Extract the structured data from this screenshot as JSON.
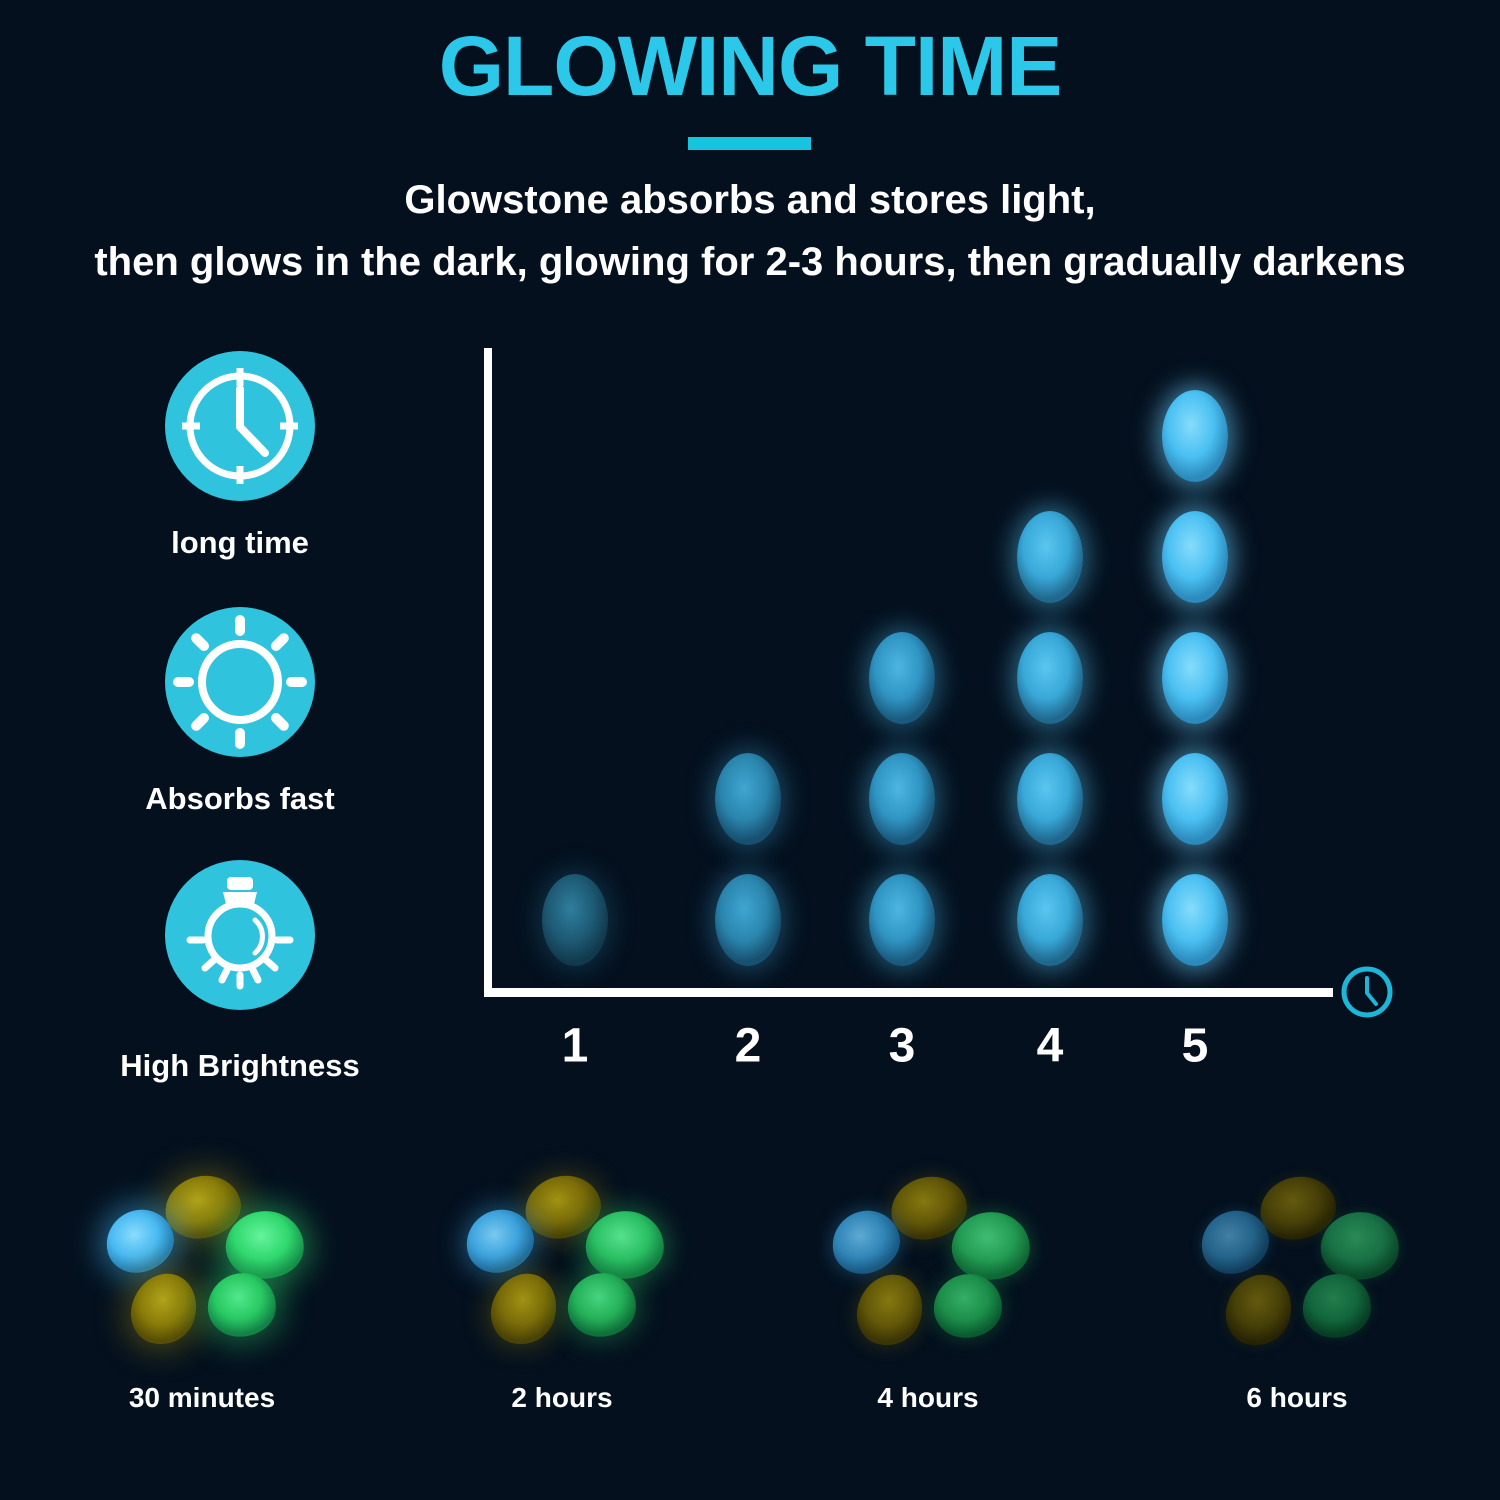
{
  "page": {
    "background": "#04101e",
    "accent_cyan": "#2bc8e9",
    "text_color": "#ffffff"
  },
  "header": {
    "title": "GLOWING TIME",
    "subtitle_line1": "Glowstone absorbs and stores light,",
    "subtitle_line2": "then glows in the dark, glowing for 2-3 hours, then gradually darkens"
  },
  "features": [
    {
      "icon": "clock-icon",
      "label": "long time",
      "circle_color": "#2fc3de"
    },
    {
      "icon": "sun-icon",
      "label": "Absorbs fast",
      "circle_color": "#2fc3de"
    },
    {
      "icon": "lightbulb-icon",
      "label": "High Brightness",
      "circle_color": "#2fc3de"
    }
  ],
  "chart_data": {
    "type": "bar",
    "variant": "pictograph of stacked glowing pebbles (count = glow level per time step)",
    "categories": [
      "1",
      "2",
      "3",
      "4",
      "5"
    ],
    "values": [
      1,
      2,
      3,
      4,
      5
    ],
    "series": [
      {
        "name": "glow brightness (pebbles stacked)",
        "values": [
          1,
          2,
          3,
          4,
          5
        ]
      }
    ],
    "title": "",
    "xlabel": "time (clock icon at axis end)",
    "ylabel": "",
    "ylim": [
      0,
      5
    ],
    "grid": false,
    "legend": "none",
    "axis_color": "#ffffff",
    "x_axis_end_icon": "clock-icon",
    "x_axis_icon_color": "#1db5d8",
    "column_pebble_styles": [
      {
        "light": "#2e7e9e",
        "base": "#1e5a74",
        "edge": "#123a4e",
        "glow": "rgba(40,125,160,0.28)"
      },
      {
        "light": "#3fa6d2",
        "base": "#2a85ad",
        "edge": "#175070",
        "glow": "rgba(60,160,210,0.35)"
      },
      {
        "light": "#4cb6e2",
        "base": "#2f94c2",
        "edge": "#1a5a7e",
        "glow": "rgba(70,180,225,0.40)"
      },
      {
        "light": "#5ac6f0",
        "base": "#38a8d8",
        "edge": "#20688e",
        "glow": "rgba(85,195,240,0.45)"
      },
      {
        "light": "#86dcfc",
        "base": "#4ac0f2",
        "edge": "#2c8abc",
        "glow": "rgba(110,210,255,0.55)"
      }
    ]
  },
  "timeline": {
    "description": "four pebble clusters fading over time",
    "clusters": [
      {
        "label": "30 minutes",
        "stage": 0
      },
      {
        "label": "2 hours",
        "stage": 1
      },
      {
        "label": "4 hours",
        "stage": 2
      },
      {
        "label": "6 hours",
        "stage": 3
      }
    ],
    "palette": {
      "blue": [
        {
          "light": "#8adcfd",
          "base": "#49baf2",
          "edge": "#2680b4",
          "glow": "rgba(70,190,250,0.45)"
        },
        {
          "light": "#79c9f0",
          "base": "#3da3dd",
          "edge": "#1f6e9e",
          "glow": "rgba(60,165,225,0.38)"
        },
        {
          "light": "#5fa9d2",
          "base": "#3186b8",
          "edge": "#195a84",
          "glow": "rgba(50,135,185,0.30)"
        },
        {
          "light": "#437fa5",
          "base": "#24648a",
          "edge": "#123f5e",
          "glow": "rgba(35,100,140,0.22)"
        }
      ],
      "olive": [
        {
          "light": "#b1a31a",
          "base": "#8a7c09",
          "edge": "#574e06",
          "glow": "rgba(150,135,15,0.40)"
        },
        {
          "light": "#a09212",
          "base": "#7a6c08",
          "edge": "#4b4306",
          "glow": "rgba(130,115,12,0.32)"
        },
        {
          "light": "#847810",
          "base": "#635808",
          "edge": "#3b3405",
          "glow": "rgba(105,95,10,0.25)"
        },
        {
          "light": "#645a0e",
          "base": "#474008",
          "edge": "#282403",
          "glow": "rgba(80,72,8,0.18)"
        }
      ],
      "greenA": [
        {
          "light": "#66f49c",
          "base": "#30d86f",
          "edge": "#17904a",
          "glow": "rgba(50,215,110,0.45)"
        },
        {
          "light": "#55e18c",
          "base": "#2abf63",
          "edge": "#127e40",
          "glow": "rgba(45,190,100,0.36)"
        },
        {
          "light": "#40bd74",
          "base": "#229c52",
          "edge": "#0e6634",
          "glow": "rgba(35,155,80,0.28)"
        },
        {
          "light": "#2a8a55",
          "base": "#187044",
          "edge": "#0a4628",
          "glow": "rgba(25,110,65,0.20)"
        }
      ],
      "greenB": [
        {
          "light": "#52e88c",
          "base": "#28c862",
          "edge": "#128246",
          "glow": "rgba(45,200,100,0.42)"
        },
        {
          "light": "#46d47e",
          "base": "#24b058",
          "edge": "#0f703a",
          "glow": "rgba(40,175,90,0.34)"
        },
        {
          "light": "#35ae66",
          "base": "#1c8f4a",
          "edge": "#0a5c30",
          "glow": "rgba(30,140,75,0.26)"
        },
        {
          "light": "#237d4c",
          "base": "#12663c",
          "edge": "#073d24",
          "glow": "rgba(22,100,60,0.18)"
        }
      ]
    }
  }
}
